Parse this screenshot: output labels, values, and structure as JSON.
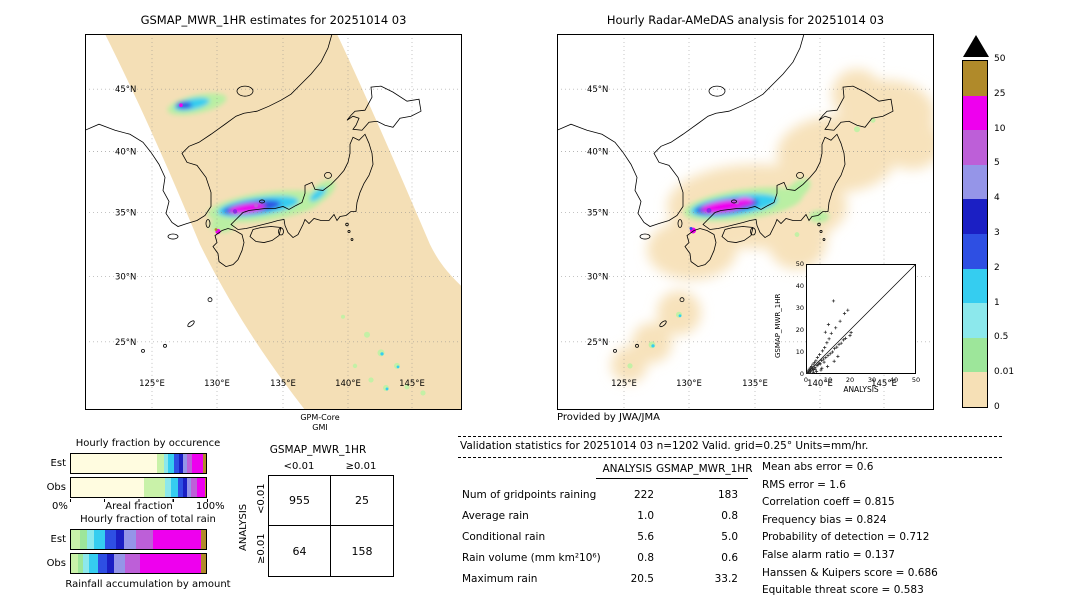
{
  "maps": {
    "left": {
      "title": "GSMAP_MWR_1HR estimates for 20251014 03",
      "lat": [
        "45°N",
        "40°N",
        "35°N",
        "30°N",
        "25°N"
      ],
      "lon": [
        "125°E",
        "130°E",
        "135°E",
        "140°E",
        "145°E"
      ],
      "caption1": "GPM-Core",
      "caption2": "GMI"
    },
    "right": {
      "title": "Hourly Radar-AMeDAS analysis for 20251014 03",
      "lat": [
        "45°N",
        "40°N",
        "35°N",
        "30°N",
        "25°N"
      ],
      "lon": [
        "125°E",
        "130°E",
        "135°E",
        "140°E",
        "145°E"
      ],
      "credit": "Provided by JWA/JMA"
    }
  },
  "inset": {
    "ylabel": "GSMAP_MWR_1HR",
    "xlabel": "ANALYSIS",
    "ticks": [
      "0",
      "10",
      "20",
      "30",
      "40",
      "50"
    ]
  },
  "fraction_panels": {
    "est_label": "Est",
    "obs_label": "Obs",
    "occurrence": {
      "title": "Hourly fraction by occurence",
      "axis_left": "0%",
      "axis_center": "Areal fraction",
      "axis_right": "100%"
    },
    "total_rain": {
      "title": "Hourly fraction of total rain",
      "footer": "Rainfall accumulation by amount"
    }
  },
  "contingency": {
    "title": "GSMAP_MWR_1HR",
    "col_labels": [
      "<0.01",
      "≥0.01"
    ],
    "row_labels": [
      "<0.01",
      "≥0.01"
    ],
    "y_axis": "ANALYSIS",
    "values": [
      [
        "955",
        "25"
      ],
      [
        "64",
        "158"
      ]
    ]
  },
  "validation": {
    "title": "Validation statistics for 20251014 03  n=1202 Valid. grid=0.25° Units=mm/hr.",
    "columns": [
      "ANALYSIS",
      "GSMAP_MWR_1HR"
    ],
    "rows": [
      {
        "label": "Num of gridpoints raining",
        "analysis": "222",
        "gsmap": "183"
      },
      {
        "label": "Average rain",
        "analysis": "1.0",
        "gsmap": "0.8"
      },
      {
        "label": "Conditional rain",
        "analysis": "5.6",
        "gsmap": "5.0"
      },
      {
        "label": "Rain volume (mm km²10⁶)",
        "analysis": "0.8",
        "gsmap": "0.6"
      },
      {
        "label": "Maximum rain",
        "analysis": "20.5",
        "gsmap": "33.2"
      }
    ],
    "scores": [
      {
        "label": "Mean abs error",
        "value": "0.6"
      },
      {
        "label": "RMS error",
        "value": "1.6"
      },
      {
        "label": "Correlation coeff",
        "value": "0.815"
      },
      {
        "label": "Frequency bias",
        "value": "0.824"
      },
      {
        "label": "Probability of detection",
        "value": "0.712"
      },
      {
        "label": "False alarm ratio",
        "value": "0.137"
      },
      {
        "label": "Hanssen & Kuipers score",
        "value": "0.686"
      },
      {
        "label": "Equitable threat score",
        "value": "0.583"
      }
    ]
  },
  "chart_data": [
    {
      "id": "left_map",
      "type": "heatmap",
      "title": "GSMAP_MWR_1HR estimates for 20251014 03",
      "source": "GPM-Core GMI",
      "x_ticks": [
        "125°E",
        "130°E",
        "135°E",
        "140°E",
        "145°E"
      ],
      "y_ticks": [
        "45°N",
        "40°N",
        "35°N",
        "30°N",
        "25°N"
      ],
      "scale_boundaries_mm_hr": [
        0,
        0.01,
        0.5,
        1,
        2,
        3,
        4,
        5,
        10,
        25,
        50
      ],
      "description": "Satellite microwave rain-rate swath (tan band NE-SW over Japan); heaviest magenta band (10-25 mm/hr) along ~35N between 131E-136E, secondary cyan/blue cell over NE Korea ~44N, scattered light-green cells south of 27N"
    },
    {
      "id": "right_map",
      "type": "heatmap",
      "title": "Hourly Radar-AMeDAS analysis for 20251014 03",
      "credit": "Provided by JWA/JMA",
      "x_ticks": [
        "125°E",
        "130°E",
        "135°E",
        "140°E",
        "145°E"
      ],
      "y_ticks": [
        "45°N",
        "40°N",
        "35°N",
        "30°N",
        "25°N"
      ],
      "scale_boundaries_mm_hr": [
        0,
        0.01,
        0.5,
        1,
        2,
        3,
        4,
        5,
        10,
        25,
        50
      ],
      "description": "Radar-AMeDAS analysis coverage (peach) along Japanese archipelago with magenta rain band along ~35N between 131E-136E"
    },
    {
      "id": "colorbar",
      "type": "colorbar",
      "tick_labels": [
        "50",
        "25",
        "10",
        "5",
        "4",
        "3",
        "2",
        "1",
        "0.5",
        "0.01",
        "0"
      ],
      "segments_top_to_bottom": [
        "#b08a2a",
        "#ee00ee",
        "#bd5fd8",
        "#9595e8",
        "#1b1fc4",
        "#2e4fe3",
        "#35cdf0",
        "#8ce8ec",
        "#9de69a",
        "#f6e0b6"
      ],
      "overflow_color": "#000000"
    },
    {
      "id": "scatter",
      "type": "scatter",
      "xlabel": "ANALYSIS",
      "ylabel": "GSMAP_MWR_1HR",
      "xlim": [
        0,
        50
      ],
      "ylim": [
        0,
        50
      ],
      "x_ticks": [
        0,
        10,
        20,
        30,
        40,
        50
      ],
      "y_ticks": [
        0,
        10,
        20,
        30,
        40,
        50
      ],
      "identity_line": true,
      "points": [
        [
          0.3,
          0.2
        ],
        [
          0.5,
          0.8
        ],
        [
          0.8,
          0.4
        ],
        [
          1,
          1.5
        ],
        [
          1.2,
          0.6
        ],
        [
          1.5,
          2.2
        ],
        [
          1.8,
          1
        ],
        [
          2,
          2.8
        ],
        [
          2.1,
          0.3
        ],
        [
          2.2,
          1.4
        ],
        [
          2.5,
          3.5
        ],
        [
          2.8,
          1.8
        ],
        [
          3,
          2.4
        ],
        [
          3.2,
          4.5
        ],
        [
          3.4,
          0.8
        ],
        [
          3.5,
          2
        ],
        [
          3.8,
          5.2
        ],
        [
          4,
          3
        ],
        [
          4.2,
          2.2
        ],
        [
          4.5,
          6
        ],
        [
          4.8,
          1.2
        ],
        [
          5,
          3.8
        ],
        [
          5.2,
          7.5
        ],
        [
          5.5,
          4.2
        ],
        [
          6,
          5
        ],
        [
          6.2,
          8.8
        ],
        [
          6.5,
          4.6
        ],
        [
          6.8,
          1.8
        ],
        [
          7,
          6.2
        ],
        [
          7.2,
          2.6
        ],
        [
          7.5,
          10.5
        ],
        [
          8,
          6.8
        ],
        [
          8.2,
          5.4
        ],
        [
          8.5,
          12
        ],
        [
          8.8,
          19
        ],
        [
          9,
          7.5
        ],
        [
          9.5,
          14.2
        ],
        [
          9.8,
          3.4
        ],
        [
          10,
          8.4
        ],
        [
          10.2,
          22.5
        ],
        [
          10.5,
          16
        ],
        [
          11,
          9.2
        ],
        [
          11.5,
          18.5
        ],
        [
          12,
          10
        ],
        [
          12.5,
          33.2
        ],
        [
          12.8,
          5.8
        ],
        [
          13,
          11.5
        ],
        [
          13.5,
          21
        ],
        [
          14,
          12.2
        ],
        [
          14.5,
          8
        ],
        [
          15,
          13.5
        ],
        [
          15.5,
          24
        ],
        [
          16,
          14
        ],
        [
          17,
          15.5
        ],
        [
          17.5,
          27.5
        ],
        [
          18,
          16.2
        ],
        [
          19,
          29
        ],
        [
          20,
          17.5
        ],
        [
          20.5,
          18.8
        ]
      ]
    },
    {
      "id": "occurrence",
      "type": "bar",
      "stacked": true,
      "title": "Hourly fraction by occurence",
      "categories": [
        "Est",
        "Obs"
      ],
      "xlabel": "Areal fraction",
      "xlim_pct": [
        0,
        100
      ],
      "bars": {
        "Est": [
          [
            "#fffce0",
            64
          ],
          [
            "#c9f2a9",
            5
          ],
          [
            "#8ce8ec",
            3
          ],
          [
            "#35cdf0",
            4
          ],
          [
            "#2e4fe3",
            4
          ],
          [
            "#1b1fc4",
            3
          ],
          [
            "#9595e8",
            3
          ],
          [
            "#bd5fd8",
            4
          ],
          [
            "#ee00ee",
            8
          ],
          [
            "#b08a2a",
            2
          ]
        ],
        "Obs": [
          [
            "#fffce0",
            54
          ],
          [
            "#c9f2a9",
            16
          ],
          [
            "#8ce8ec",
            4
          ],
          [
            "#35cdf0",
            5
          ],
          [
            "#2e4fe3",
            4
          ],
          [
            "#1b1fc4",
            3
          ],
          [
            "#9595e8",
            3
          ],
          [
            "#bd5fd8",
            4
          ],
          [
            "#ee00ee",
            6
          ],
          [
            "#b08a2a",
            1
          ]
        ]
      }
    },
    {
      "id": "total_rain",
      "type": "bar",
      "stacked": true,
      "title": "Hourly fraction of total rain",
      "categories": [
        "Est",
        "Obs"
      ],
      "xlabel": "Rainfall accumulation by amount",
      "xlim_pct": [
        0,
        100
      ],
      "bars": {
        "Est": [
          [
            "#c9f2a9",
            7
          ],
          [
            "#9de69a",
            5
          ],
          [
            "#8ce8ec",
            5
          ],
          [
            "#35cdf0",
            8
          ],
          [
            "#2e4fe3",
            8
          ],
          [
            "#1b1fc4",
            6
          ],
          [
            "#9595e8",
            9
          ],
          [
            "#bd5fd8",
            13
          ],
          [
            "#ee00ee",
            35
          ],
          [
            "#b08a2a",
            4
          ]
        ],
        "Obs": [
          [
            "#c9f2a9",
            5
          ],
          [
            "#9de69a",
            4
          ],
          [
            "#8ce8ec",
            4
          ],
          [
            "#35cdf0",
            7
          ],
          [
            "#2e4fe3",
            7
          ],
          [
            "#1b1fc4",
            5
          ],
          [
            "#9595e8",
            8
          ],
          [
            "#bd5fd8",
            11
          ],
          [
            "#ee00ee",
            45
          ],
          [
            "#b08a2a",
            4
          ]
        ]
      }
    },
    {
      "id": "contingency",
      "type": "table",
      "title": "GSMAP_MWR_1HR",
      "row_axis": "ANALYSIS",
      "columns": [
        "<0.01",
        "≥0.01"
      ],
      "rows": [
        "<0.01",
        "≥0.01"
      ],
      "values": [
        [
          955,
          25
        ],
        [
          64,
          158
        ]
      ]
    },
    {
      "id": "validation_stats",
      "type": "table",
      "title": "Validation statistics for 20251014 03  n=1202 Valid. grid=0.25° Units=mm/hr.",
      "columns": [
        "",
        "ANALYSIS",
        "GSMAP_MWR_1HR"
      ],
      "rows": [
        [
          "Num of gridpoints raining",
          222,
          183
        ],
        [
          "Average rain",
          1.0,
          0.8
        ],
        [
          "Conditional rain",
          5.6,
          5.0
        ],
        [
          "Rain volume (mm km²10⁶)",
          0.8,
          0.6
        ],
        [
          "Maximum rain",
          20.5,
          33.2
        ]
      ],
      "scores": [
        [
          "Mean abs error",
          0.6
        ],
        [
          "RMS error",
          1.6
        ],
        [
          "Correlation coeff",
          0.815
        ],
        [
          "Frequency bias",
          0.824
        ],
        [
          "Probability of detection",
          0.712
        ],
        [
          "False alarm ratio",
          0.137
        ],
        [
          "Hanssen & Kuipers score",
          0.686
        ],
        [
          "Equitable threat score",
          0.583
        ]
      ]
    }
  ]
}
